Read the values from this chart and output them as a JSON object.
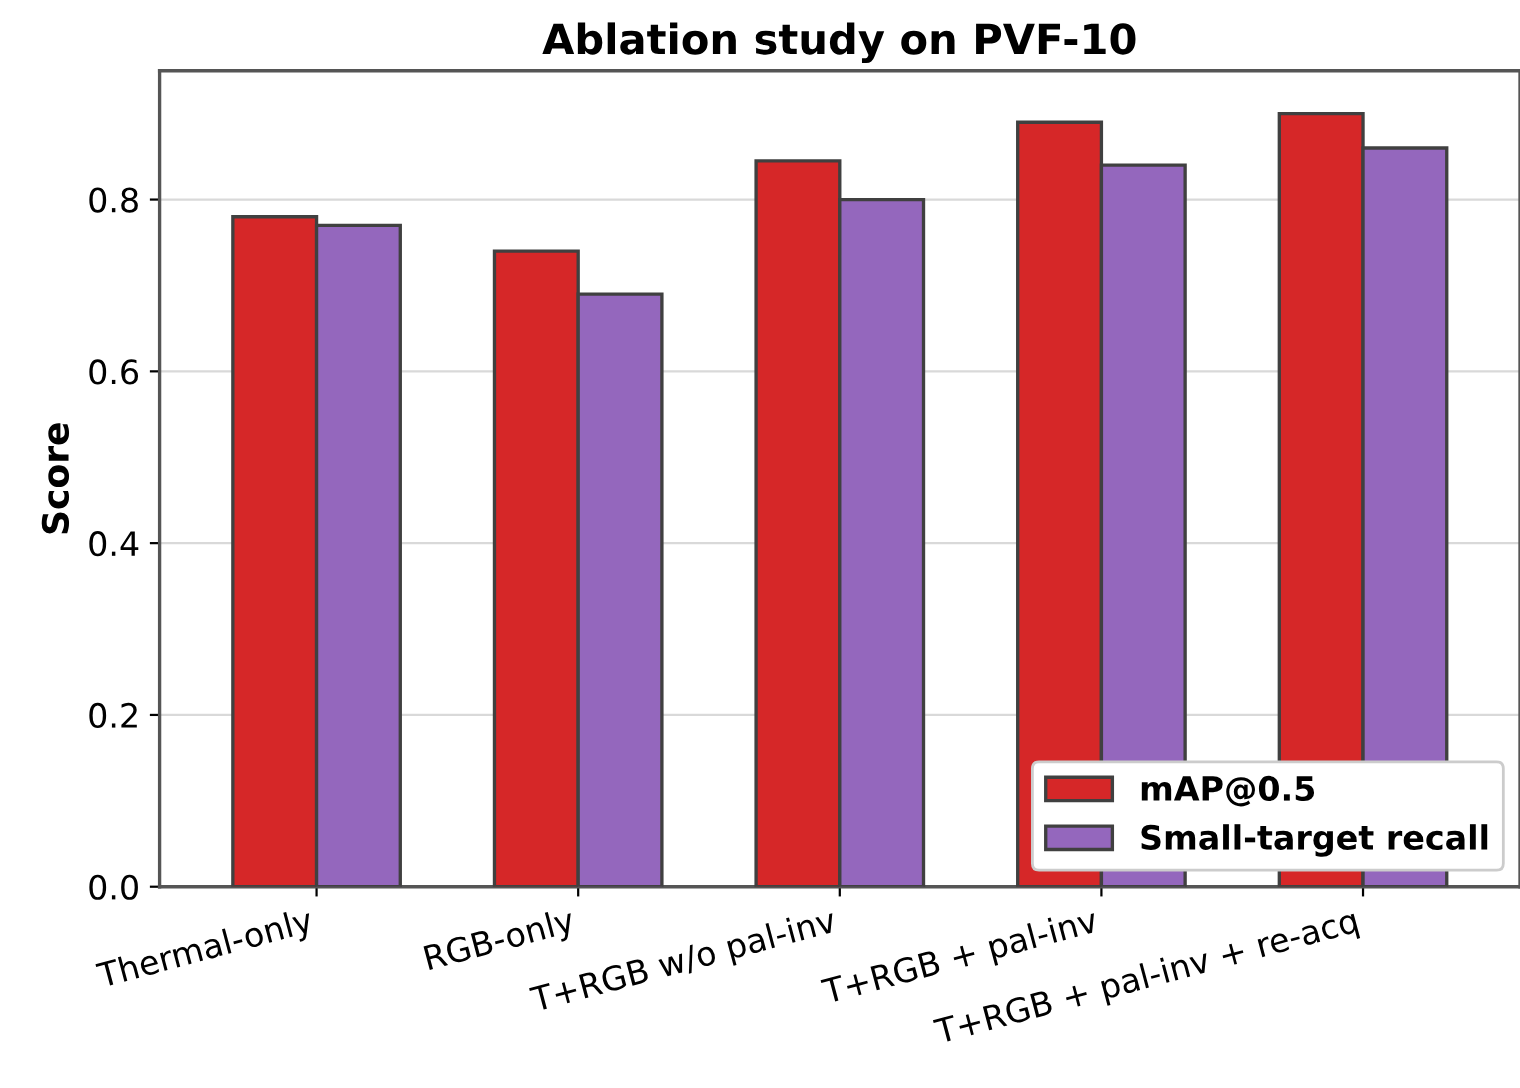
{
  "chart_data": {
    "type": "bar",
    "title": "Ablation study on PVF-10",
    "ylabel": "Score",
    "categories": [
      "Thermal-only",
      "RGB-only",
      "T+RGB w/o pal-inv",
      "T+RGB + pal-inv",
      "T+RGB + pal-inv + re-acq"
    ],
    "series": [
      {
        "name": "mAP@0.5",
        "color": "#d62728",
        "values": [
          0.78,
          0.74,
          0.845,
          0.89,
          0.9
        ]
      },
      {
        "name": "Small-target recall",
        "color": "#9467bd",
        "values": [
          0.77,
          0.69,
          0.8,
          0.84,
          0.86
        ]
      }
    ],
    "ylim": [
      0,
      0.95
    ],
    "yticks": [
      {
        "value": 0,
        "label": "0.0"
      },
      0.2,
      0.4,
      0.6,
      0.8
    ],
    "grid": "y",
    "legend": "bottom right"
  }
}
